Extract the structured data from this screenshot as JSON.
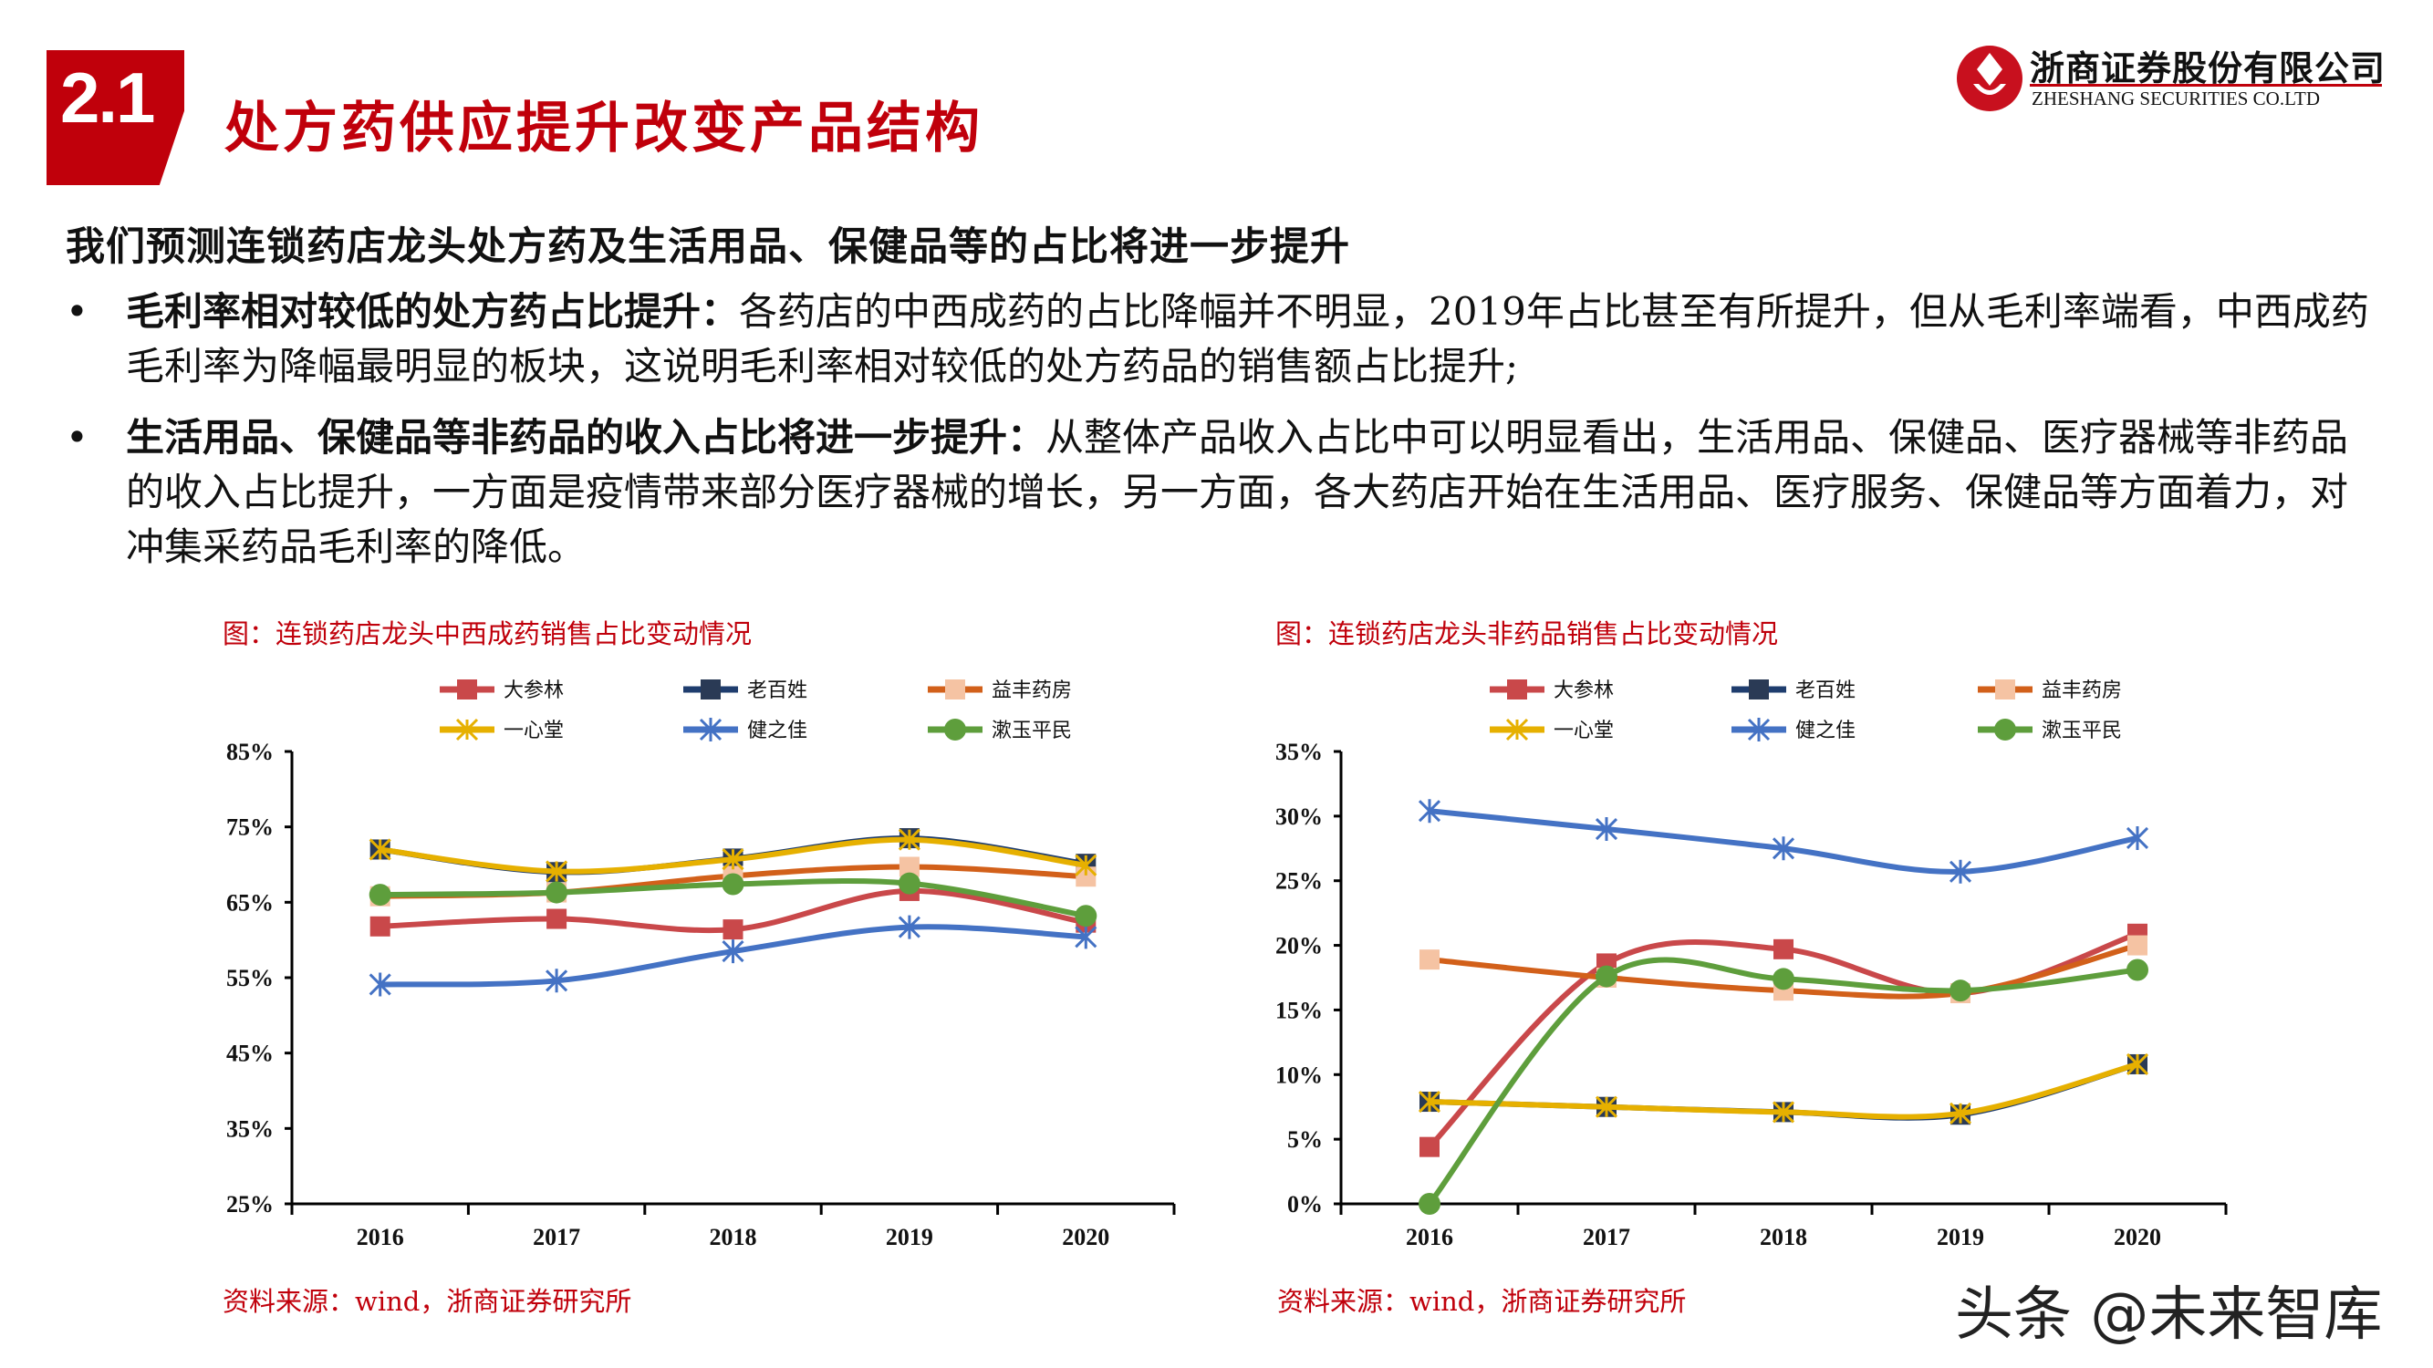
{
  "header": {
    "section_number": "2.1",
    "title": "处方药供应提升改变产品结构",
    "logo_cn": "浙商证券股份有限公司",
    "logo_en": "ZHESHANG SECURITIES CO.LTD"
  },
  "subtitle": "我们预测连锁药店龙头处方药及生活用品、保健品等的占比将进一步提升",
  "bullets": [
    {
      "bold": "毛利率相对较低的处方药占比提升：",
      "text": "各药店的中西成药的占比降幅并不明显，2019年占比甚至有所提升，但从毛利率端看，中西成药毛利率为降幅最明显的板块，这说明毛利率相对较低的处方药品的销售额占比提升;"
    },
    {
      "bold": "生活用品、保健品等非药品的收入占比将进一步提升：",
      "text": "从整体产品收入占比中可以明显看出，生活用品、保健品、医疗器械等非药品的收入占比提升，一方面是疫情带来部分医疗器械的增长，另一方面，各大药店开始在生活用品、医疗服务、保健品等方面着力，对冲集采药品毛利率的降低。"
    }
  ],
  "watermark": "头条 @未来智库",
  "chart_data": [
    {
      "type": "line",
      "caption": "图：连锁药店龙头中西成药销售占比变动情况",
      "source": "资料来源：wind，浙商证券研究所",
      "categories": [
        "2016",
        "2017",
        "2018",
        "2019",
        "2020"
      ],
      "ylim": [
        25,
        85
      ],
      "yticks": [
        "25%",
        "35%",
        "45%",
        "55%",
        "65%",
        "75%",
        "85%"
      ],
      "legend_placement": "top",
      "grid": false,
      "series": [
        {
          "name": "大参林",
          "color": "#c9484a",
          "marker": "square",
          "marker_color": "#c9484a",
          "values": [
            61.8,
            62.8,
            61.4,
            66.5,
            62.3
          ]
        },
        {
          "name": "老百姓",
          "color": "#1f3d6e",
          "marker": "square",
          "marker_color": "#2a3a55",
          "values": [
            72.0,
            69.0,
            70.8,
            73.5,
            70.1
          ]
        },
        {
          "name": "益丰药房",
          "color": "#d2601a",
          "marker": "square",
          "marker_color": "#f5c3a3",
          "values": [
            65.8,
            66.3,
            68.5,
            69.7,
            68.4
          ]
        },
        {
          "name": "一心堂",
          "color": "#e6b000",
          "marker": "x",
          "marker_color": "#e6b000",
          "values": [
            72.0,
            69.1,
            70.7,
            73.3,
            69.9
          ]
        },
        {
          "name": "健之佳",
          "color": "#4472c4",
          "marker": "star",
          "marker_color": "#4472c4",
          "values": [
            54.1,
            54.6,
            58.5,
            61.7,
            60.4
          ]
        },
        {
          "name": "漱玉平民",
          "color": "#5e9e3c",
          "marker": "circle",
          "marker_color": "#5e9e3c",
          "values": [
            66.0,
            66.3,
            67.4,
            67.5,
            63.2
          ]
        }
      ]
    },
    {
      "type": "line",
      "caption": "图：连锁药店龙头非药品销售占比变动情况",
      "source": "资料来源：wind，浙商证券研究所",
      "categories": [
        "2016",
        "2017",
        "2018",
        "2019",
        "2020"
      ],
      "ylim": [
        0,
        35
      ],
      "yticks": [
        "0%",
        "5%",
        "10%",
        "15%",
        "20%",
        "25%",
        "30%",
        "35%"
      ],
      "legend_placement": "top",
      "grid": false,
      "series": [
        {
          "name": "大参林",
          "color": "#c9484a",
          "marker": "square",
          "marker_color": "#c9484a",
          "values": [
            4.4,
            18.6,
            19.7,
            16.3,
            20.9
          ]
        },
        {
          "name": "老百姓",
          "color": "#1f3d6e",
          "marker": "square",
          "marker_color": "#2a3a55",
          "values": [
            7.9,
            7.5,
            7.1,
            6.9,
            10.8
          ]
        },
        {
          "name": "益丰药房",
          "color": "#d2601a",
          "marker": "square",
          "marker_color": "#f5c3a3",
          "values": [
            18.9,
            17.5,
            16.5,
            16.3,
            20.0
          ]
        },
        {
          "name": "一心堂",
          "color": "#e6b000",
          "marker": "x",
          "marker_color": "#e6b000",
          "values": [
            7.9,
            7.5,
            7.1,
            7.0,
            10.8
          ]
        },
        {
          "name": "健之佳",
          "color": "#4472c4",
          "marker": "star",
          "marker_color": "#4472c4",
          "values": [
            30.4,
            29.0,
            27.5,
            25.7,
            28.3
          ]
        },
        {
          "name": "漱玉平民",
          "color": "#5e9e3c",
          "marker": "circle",
          "marker_color": "#5e9e3c",
          "values": [
            0.0,
            17.6,
            17.4,
            16.5,
            18.1
          ]
        }
      ]
    }
  ]
}
